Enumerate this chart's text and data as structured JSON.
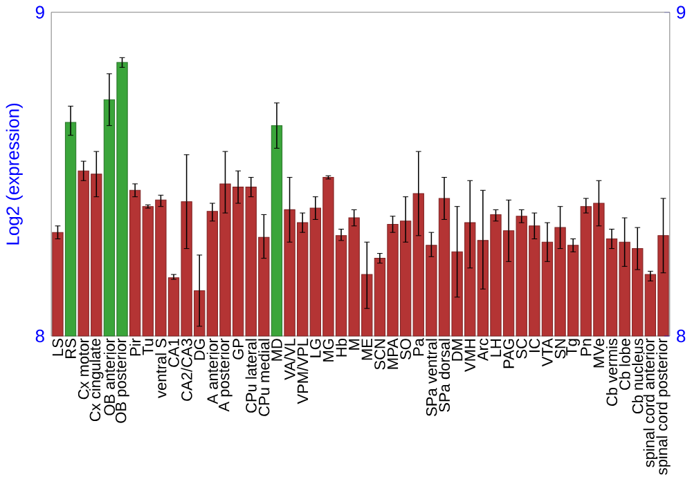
{
  "chart_data": {
    "type": "bar",
    "ylabel": "Log2 (expression)",
    "categories": [
      "LS",
      "RS",
      "Cx motor",
      "Cx cingulate",
      "OB anterior",
      "OB posterior",
      "Pir",
      "Tu",
      "ventral S",
      "CA1",
      "CA2/CA3",
      "DG",
      "A anterior",
      "A posterior",
      "GP",
      "CPu lateral",
      "CPu medial",
      "MD",
      "VA/VL",
      "VPM/VPL",
      "LG",
      "MG",
      "Hb",
      "M",
      "ME",
      "SCN",
      "MPA",
      "SO",
      "Pa",
      "SPa ventral",
      "SPa dorsal",
      "DM",
      "VMH",
      "Arc",
      "LH",
      "PAG",
      "SC",
      "IC",
      "VTA",
      "SN",
      "Tg",
      "Pn",
      "MVe",
      "Cb vermis",
      "Cb lobe",
      "Cb nucleus",
      "spinal cord anterior",
      "spinal cord posterior"
    ],
    "values": [
      8.32,
      8.66,
      8.51,
      8.5,
      8.73,
      8.845,
      8.45,
      8.4,
      8.42,
      8.18,
      8.415,
      8.14,
      8.385,
      8.47,
      8.46,
      8.46,
      8.305,
      8.65,
      8.39,
      8.35,
      8.395,
      8.49,
      8.31,
      8.365,
      8.19,
      8.24,
      8.345,
      8.355,
      8.44,
      8.28,
      8.425,
      8.26,
      8.35,
      8.295,
      8.375,
      8.325,
      8.37,
      8.34,
      8.29,
      8.335,
      8.28,
      8.4,
      8.41,
      8.3,
      8.29,
      8.27,
      8.19,
      8.31
    ],
    "errors": [
      [
        8.3,
        8.34
      ],
      [
        8.62,
        8.71
      ],
      [
        8.48,
        8.54
      ],
      [
        8.43,
        8.57
      ],
      [
        8.65,
        8.81
      ],
      [
        8.83,
        8.86
      ],
      [
        8.43,
        8.47
      ],
      [
        8.395,
        8.405
      ],
      [
        8.4,
        8.435
      ],
      [
        8.175,
        8.19
      ],
      [
        8.27,
        8.56
      ],
      [
        8.03,
        8.25
      ],
      [
        8.355,
        8.41
      ],
      [
        8.38,
        8.57
      ],
      [
        8.41,
        8.51
      ],
      [
        8.43,
        8.49
      ],
      [
        8.24,
        8.375
      ],
      [
        8.58,
        8.72
      ],
      [
        8.29,
        8.49
      ],
      [
        8.32,
        8.38
      ],
      [
        8.36,
        8.43
      ],
      [
        8.485,
        8.495
      ],
      [
        8.295,
        8.33
      ],
      [
        8.34,
        8.39
      ],
      [
        8.085,
        8.29
      ],
      [
        8.225,
        8.255
      ],
      [
        8.32,
        8.37
      ],
      [
        8.29,
        8.43
      ],
      [
        8.31,
        8.57
      ],
      [
        8.245,
        8.32
      ],
      [
        8.36,
        8.49
      ],
      [
        8.12,
        8.4
      ],
      [
        8.21,
        8.48
      ],
      [
        8.145,
        8.45
      ],
      [
        8.355,
        8.39
      ],
      [
        8.23,
        8.42
      ],
      [
        8.35,
        8.39
      ],
      [
        8.3,
        8.38
      ],
      [
        8.23,
        8.35
      ],
      [
        8.27,
        8.4
      ],
      [
        8.26,
        8.3
      ],
      [
        8.38,
        8.425
      ],
      [
        8.34,
        8.48
      ],
      [
        8.27,
        8.33
      ],
      [
        8.215,
        8.365
      ],
      [
        8.205,
        8.335
      ],
      [
        8.17,
        8.2
      ],
      [
        8.195,
        8.425
      ]
    ],
    "colors": [
      "#b43434",
      "#3aa53a",
      "#b43434",
      "#b43434",
      "#3aa53a",
      "#3aa53a",
      "#b43434",
      "#b43434",
      "#b43434",
      "#b43434",
      "#b43434",
      "#b43434",
      "#b43434",
      "#b43434",
      "#b43434",
      "#b43434",
      "#b43434",
      "#3aa53a",
      "#b43434",
      "#b43434",
      "#b43434",
      "#b43434",
      "#b43434",
      "#b43434",
      "#b43434",
      "#b43434",
      "#b43434",
      "#b43434",
      "#b43434",
      "#b43434",
      "#b43434",
      "#b43434",
      "#b43434",
      "#b43434",
      "#b43434",
      "#b43434",
      "#b43434",
      "#b43434",
      "#b43434",
      "#b43434",
      "#b43434",
      "#b43434",
      "#b43434",
      "#b43434",
      "#b43434",
      "#b43434",
      "#b43434",
      "#b43434"
    ],
    "ylim": [
      8,
      9
    ],
    "yticks": [
      8,
      9
    ],
    "y2lim": [
      8,
      9
    ],
    "y2ticks": [
      8,
      9
    ]
  }
}
